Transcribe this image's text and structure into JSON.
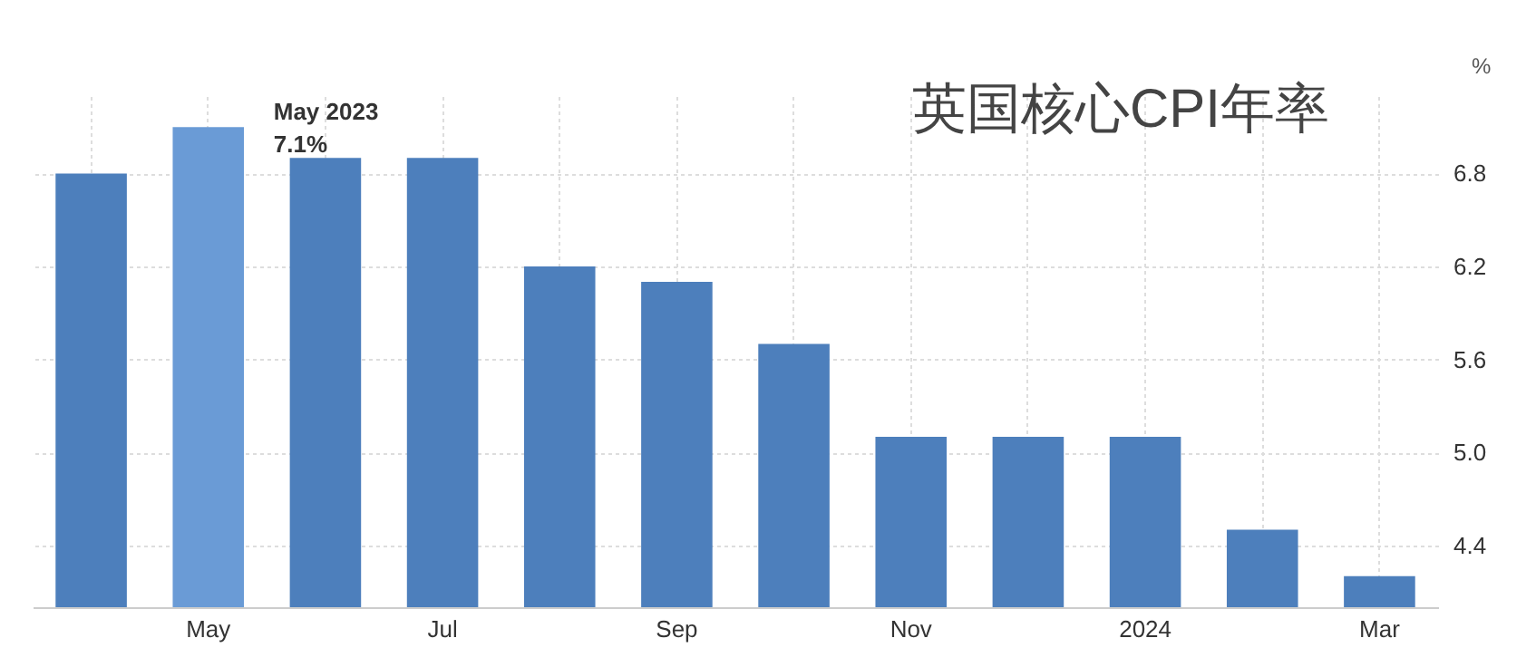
{
  "chart_data": {
    "type": "bar",
    "title": "英国核心CPI年率",
    "ylabel": "%",
    "categories": [
      null,
      "May",
      null,
      "Jul",
      null,
      "Sep",
      null,
      "Nov",
      null,
      "2024",
      null,
      "Mar"
    ],
    "values": [
      6.8,
      7.1,
      6.9,
      6.9,
      6.2,
      6.1,
      5.7,
      5.1,
      5.1,
      5.1,
      4.5,
      4.2
    ],
    "colors": [
      "#4d7fbc",
      "#6a9bd6",
      "#4d7fbc",
      "#4d7fbc",
      "#4d7fbc",
      "#4d7fbc",
      "#4d7fbc",
      "#4d7fbc",
      "#4d7fbc",
      "#4d7fbc",
      "#4d7fbc",
      "#4d7fbc"
    ],
    "ylim": [
      4.0,
      7.3
    ],
    "yticks": [
      4.4,
      {
        "value": 5,
        "label": "5.0"
      },
      5.6,
      6.2,
      6.8
    ],
    "grid": true,
    "annotations": [
      {
        "text": "May 2023\n7.1%",
        "x": "May",
        "y": 7.1
      }
    ]
  }
}
